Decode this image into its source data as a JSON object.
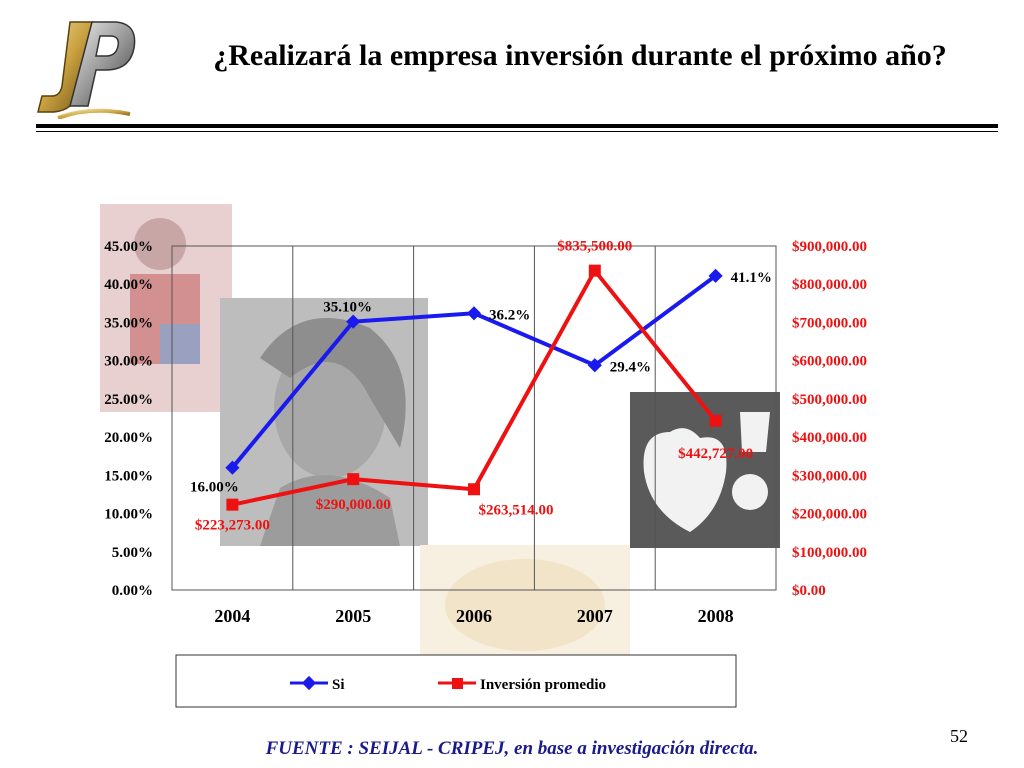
{
  "slide": {
    "title": "¿Realizará la empresa inversión durante el próximo año?",
    "source": "FUENTE :  SEIJAL - CRIPEJ,  en base a investigación directa.",
    "page_number": "52",
    "logo_letters": "JP"
  },
  "colors": {
    "series_si": "#1a1aee",
    "series_inversion": "#ee1111",
    "logo_gold": "#c8a040"
  },
  "chart_data": {
    "type": "line",
    "title": "",
    "categories": [
      "2004",
      "2005",
      "2006",
      "2007",
      "2008"
    ],
    "y_left": {
      "ylim": [
        0,
        45
      ],
      "ticks": [
        0,
        5,
        10,
        15,
        20,
        25,
        30,
        35,
        40,
        45
      ],
      "tick_labels": [
        "0.00%",
        "5.00%",
        "10.00%",
        "15.00%",
        "20.00%",
        "25.00%",
        "30.00%",
        "35.00%",
        "40.00%",
        "45.00%"
      ]
    },
    "y_right": {
      "ylim": [
        0,
        900000
      ],
      "ticks": [
        0,
        100000,
        200000,
        300000,
        400000,
        500000,
        600000,
        700000,
        800000,
        900000
      ],
      "tick_labels": [
        "$0.00",
        "$100,000.00",
        "$200,000.00",
        "$300,000.00",
        "$400,000.00",
        "$500,000.00",
        "$600,000.00",
        "$700,000.00",
        "$800,000.00",
        "$900,000.00"
      ]
    },
    "grid": "vertical",
    "legend_position": "bottom",
    "series": [
      {
        "name": "Si",
        "axis": "left",
        "marker": "diamond",
        "values": [
          16.0,
          35.1,
          36.2,
          29.4,
          41.1
        ],
        "labels": [
          "16.00%",
          "35.10%",
          "36.2%",
          "29.4%",
          "41.1%"
        ]
      },
      {
        "name": "Inversión promedio",
        "axis": "right",
        "marker": "square",
        "values": [
          223273,
          290000,
          263514,
          835500,
          442727
        ],
        "labels": [
          "$223,273.00",
          "$290,000.00",
          "$263,514.00",
          "$835,500.00",
          "$442,727.00"
        ]
      }
    ]
  }
}
